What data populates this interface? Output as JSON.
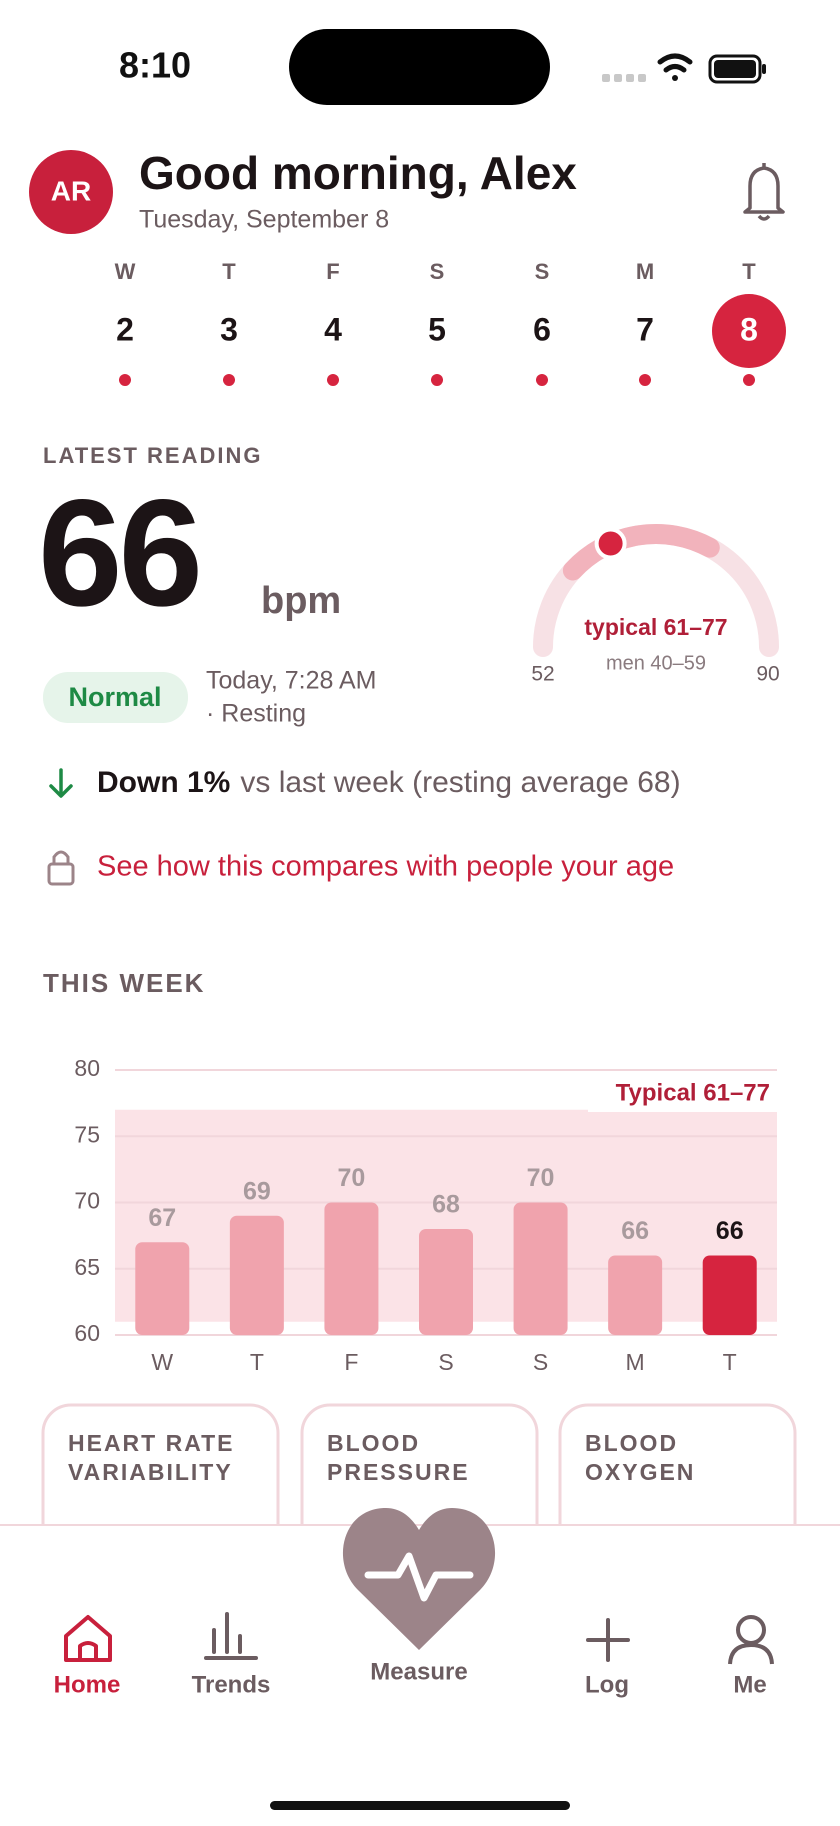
{
  "status_bar": {
    "time": "8:10"
  },
  "header": {
    "initials": "AR",
    "greeting": "Good morning, Alex",
    "date": "Tuesday, September 8"
  },
  "week_strip": {
    "days": [
      {
        "letter": "W",
        "date": 2
      },
      {
        "letter": "T",
        "date": 3
      },
      {
        "letter": "F",
        "date": 4
      },
      {
        "letter": "S",
        "date": 5
      },
      {
        "letter": "S",
        "date": 6
      },
      {
        "letter": "M",
        "date": 7
      },
      {
        "letter": "T",
        "date": 8,
        "selected": true
      }
    ]
  },
  "latest_reading": {
    "heading": "LATEST READING",
    "value": 66,
    "unit": "bpm",
    "status": "Normal",
    "time": "Today, 7:28 AM",
    "context": "· Resting",
    "change": "Down 1%",
    "comparison": "vs last week (resting average 68)",
    "compare_link": "See how this compares with people your age"
  },
  "gauge": {
    "min": 52,
    "max": 90,
    "typical": [
      61,
      77
    ],
    "typical_label": "typical 61–77",
    "reference_label": "men 40–59"
  },
  "this_week": {
    "heading": "THIS WEEK"
  },
  "chart_data": {
    "type": "bar",
    "categories": [
      "W",
      "T",
      "F",
      "S",
      "S",
      "M",
      "T"
    ],
    "values": [
      67,
      69,
      70,
      68,
      70,
      66,
      66
    ],
    "colors": [
      "#f0a3ad",
      "#f0a3ad",
      "#f0a3ad",
      "#f0a3ad",
      "#f0a3ad",
      "#f0a3ad",
      "#d6243f"
    ],
    "ylim": [
      60,
      80
    ],
    "yticks": [
      60,
      65,
      70,
      75,
      80
    ],
    "grid": true,
    "band": [
      61,
      77
    ],
    "band_label": "Typical 61–77",
    "band_color": "#fbe3e7"
  },
  "cards": [
    {
      "lines": [
        "HEART RATE",
        "VARIABILITY"
      ]
    },
    {
      "lines": [
        "BLOOD",
        "PRESSURE"
      ]
    },
    {
      "lines": [
        "BLOOD",
        "OXYGEN"
      ]
    }
  ],
  "tab_bar": {
    "items": [
      {
        "label": "Home",
        "active": true
      },
      {
        "label": "Trends",
        "active": false
      },
      {
        "label": "Measure",
        "active": false
      },
      {
        "label": "Log",
        "active": false
      },
      {
        "label": "Me",
        "active": false
      }
    ]
  }
}
